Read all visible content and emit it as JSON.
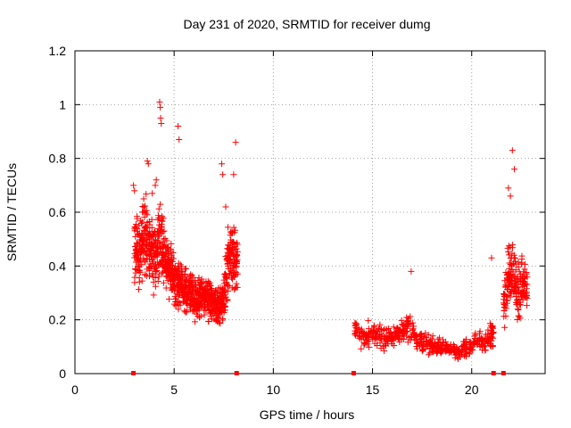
{
  "chart_data": {
    "type": "scatter",
    "title": "Day 231 of 2020, SRMTID for receiver dumg",
    "xlabel": "GPS time / hours",
    "ylabel": "SRMTID / TECUs",
    "xlim": [
      0,
      23.7
    ],
    "ylim": [
      0,
      1.2
    ],
    "grid": true,
    "marker": "+",
    "color": "#ff0000",
    "x_ticks": [
      0,
      5,
      10,
      15,
      20
    ],
    "x_tick_labels": [
      "0",
      "5",
      "10",
      "15",
      "20"
    ],
    "y_ticks": [
      0,
      0.2,
      0.4,
      0.6,
      0.8,
      1,
      1.2
    ],
    "y_tick_labels": [
      "0",
      "0.2",
      "0.4",
      "0.6",
      "0.8",
      "1",
      "1.2"
    ],
    "gap_markers_x": [
      2.95,
      8.15,
      14.05,
      21.1,
      21.6
    ],
    "series": [
      {
        "name": "SRMTID",
        "clusters": [
          {
            "x": [
              3.0,
              3.1,
              3.2,
              3.3,
              3.4,
              3.5,
              3.6,
              3.7,
              3.8,
              3.9,
              4.0,
              4.1,
              4.2,
              4.3,
              4.4,
              4.5,
              4.6,
              4.7,
              4.8,
              4.9,
              5.0,
              5.1,
              5.2,
              5.3,
              5.4,
              5.5,
              5.6,
              5.7,
              5.8,
              5.9,
              6.0,
              6.1,
              6.2,
              6.3,
              6.4,
              6.5,
              6.6,
              6.7,
              6.8,
              6.9,
              7.0,
              7.1,
              7.2,
              7.3,
              7.4,
              7.5,
              7.6,
              7.7,
              7.8,
              7.9,
              8.0,
              8.1
            ],
            "y": [
              0.45,
              0.5,
              0.42,
              0.48,
              0.5,
              0.52,
              0.5,
              0.48,
              0.47,
              0.45,
              0.44,
              0.46,
              0.48,
              0.5,
              0.45,
              0.42,
              0.4,
              0.4,
              0.38,
              0.36,
              0.35,
              0.34,
              0.33,
              0.32,
              0.32,
              0.31,
              0.3,
              0.3,
              0.3,
              0.29,
              0.28,
              0.28,
              0.28,
              0.29,
              0.28,
              0.28,
              0.29,
              0.27,
              0.26,
              0.26,
              0.26,
              0.25,
              0.25,
              0.26,
              0.28,
              0.3,
              0.35,
              0.4,
              0.45,
              0.45,
              0.45,
              0.4
            ],
            "spread": [
              0.2,
              0.22,
              0.2,
              0.2,
              0.22,
              0.22,
              0.22,
              0.2,
              0.2,
              0.2,
              0.22,
              0.22,
              0.22,
              0.22,
              0.2,
              0.18,
              0.16,
              0.16,
              0.15,
              0.14,
              0.14,
              0.13,
              0.13,
              0.12,
              0.12,
              0.12,
              0.12,
              0.12,
              0.12,
              0.12,
              0.11,
              0.11,
              0.11,
              0.12,
              0.11,
              0.11,
              0.12,
              0.11,
              0.1,
              0.1,
              0.1,
              0.1,
              0.1,
              0.11,
              0.12,
              0.14,
              0.16,
              0.18,
              0.2,
              0.2,
              0.2,
              0.18
            ],
            "density": 20
          },
          {
            "x": [
              14.1,
              14.3,
              14.5,
              14.7,
              14.9,
              15.1,
              15.3,
              15.5,
              15.7,
              15.9,
              16.1,
              16.3,
              16.5,
              16.7,
              16.9,
              17.1,
              17.3,
              17.5,
              17.7,
              17.9,
              18.1,
              18.3,
              18.5,
              18.7,
              18.9,
              19.1,
              19.3,
              19.5,
              19.7,
              19.9,
              20.1,
              20.3,
              20.5,
              20.7,
              20.9,
              21.0
            ],
            "y": [
              0.16,
              0.15,
              0.14,
              0.14,
              0.15,
              0.14,
              0.14,
              0.13,
              0.14,
              0.14,
              0.15,
              0.15,
              0.16,
              0.18,
              0.15,
              0.13,
              0.12,
              0.12,
              0.11,
              0.11,
              0.1,
              0.1,
              0.1,
              0.1,
              0.09,
              0.08,
              0.08,
              0.09,
              0.1,
              0.1,
              0.12,
              0.12,
              0.12,
              0.13,
              0.14,
              0.15
            ],
            "spread": [
              0.08,
              0.07,
              0.07,
              0.07,
              0.07,
              0.07,
              0.07,
              0.07,
              0.07,
              0.07,
              0.07,
              0.07,
              0.08,
              0.09,
              0.07,
              0.06,
              0.06,
              0.06,
              0.06,
              0.06,
              0.05,
              0.05,
              0.05,
              0.05,
              0.05,
              0.05,
              0.05,
              0.05,
              0.05,
              0.05,
              0.06,
              0.06,
              0.06,
              0.06,
              0.07,
              0.07
            ],
            "density": 14
          },
          {
            "x": [
              21.6,
              21.7,
              21.8,
              21.9,
              22.0,
              22.1,
              22.2,
              22.3,
              22.4,
              22.5,
              22.6,
              22.7
            ],
            "y": [
              0.3,
              0.32,
              0.36,
              0.4,
              0.4,
              0.35,
              0.32,
              0.3,
              0.32,
              0.34,
              0.33,
              0.3
            ],
            "spread": [
              0.14,
              0.16,
              0.18,
              0.2,
              0.22,
              0.2,
              0.18,
              0.16,
              0.16,
              0.16,
              0.16,
              0.14
            ],
            "density": 16
          }
        ],
        "outliers": {
          "x": [
            4.27,
            4.3,
            4.32,
            4.35,
            5.2,
            5.25,
            8.1,
            3.65,
            3.7,
            22.05,
            22.15,
            21.85,
            21.95,
            21.0,
            16.95,
            4.05,
            4.1,
            3.9,
            7.4,
            7.45,
            7.6,
            2.95,
            3.0,
            8.0
          ],
          "y": [
            1.01,
            0.99,
            0.95,
            0.93,
            0.92,
            0.87,
            0.86,
            0.79,
            0.78,
            0.83,
            0.76,
            0.69,
            0.66,
            0.43,
            0.38,
            0.7,
            0.72,
            0.67,
            0.78,
            0.74,
            0.62,
            0.7,
            0.68,
            0.74
          ]
        }
      }
    ]
  }
}
